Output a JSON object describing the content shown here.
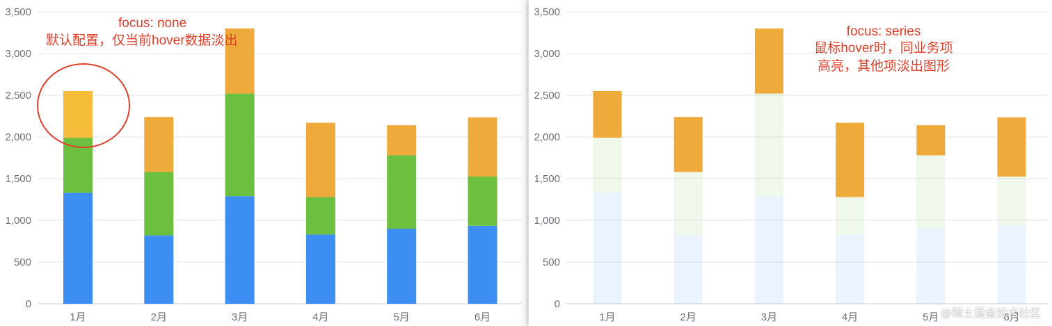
{
  "colors": {
    "blue": "#3d8ef2",
    "green": "#6cbf3f",
    "yellow": "#f6bd3b",
    "orange": "#eeaa3a",
    "axis": "#6e7079",
    "grid": "#e3e5ea",
    "annotation": "#e0402b"
  },
  "annotations": {
    "left_title": "focus: none",
    "left_desc": "默认配置，仅当前hover数据淡出",
    "right_title": "focus: series",
    "right_line1": "鼠标hover时，同业务项",
    "right_line2": "高亮，其他项淡出图形"
  },
  "watermark": "@稀土掘金技术社区",
  "chart_data": [
    {
      "type": "bar",
      "stacked": true,
      "focus": "none",
      "categories": [
        "1月",
        "2月",
        "3月",
        "4月",
        "5月",
        "6月"
      ],
      "series": [
        {
          "values": [
            1330,
            820,
            1290,
            830,
            900,
            935
          ],
          "color": "#3d8ef2"
        },
        {
          "values": [
            660,
            760,
            1230,
            450,
            880,
            590
          ],
          "color": "#6cbf3f"
        },
        {
          "values": [
            560,
            660,
            780,
            890,
            360,
            710
          ],
          "color": "#eeaa3a"
        }
      ],
      "highlight": "1月 top segment (hovered, circled)",
      "ylim": [
        0,
        3500
      ],
      "yticks": [
        "0",
        "500",
        "1,000",
        "1,500",
        "2,000",
        "2,500",
        "3,000",
        "3,500"
      ],
      "grid": true
    },
    {
      "type": "bar",
      "stacked": true,
      "focus": "series",
      "categories": [
        "1月",
        "2月",
        "3月",
        "4月",
        "5月",
        "6月"
      ],
      "series": [
        {
          "values": [
            1330,
            820,
            1290,
            830,
            900,
            935
          ],
          "color": "#3d8ef2",
          "faded": true
        },
        {
          "values": [
            660,
            760,
            1230,
            450,
            880,
            590
          ],
          "color": "#6cbf3f",
          "faded": true
        },
        {
          "values": [
            560,
            660,
            780,
            890,
            360,
            710
          ],
          "color": "#eeaa3a",
          "faded": false
        }
      ],
      "ylim": [
        0,
        3500
      ],
      "yticks": [
        "0",
        "500",
        "1,000",
        "1,500",
        "2,000",
        "2,500",
        "3,000",
        "3,500"
      ],
      "grid": true
    }
  ]
}
